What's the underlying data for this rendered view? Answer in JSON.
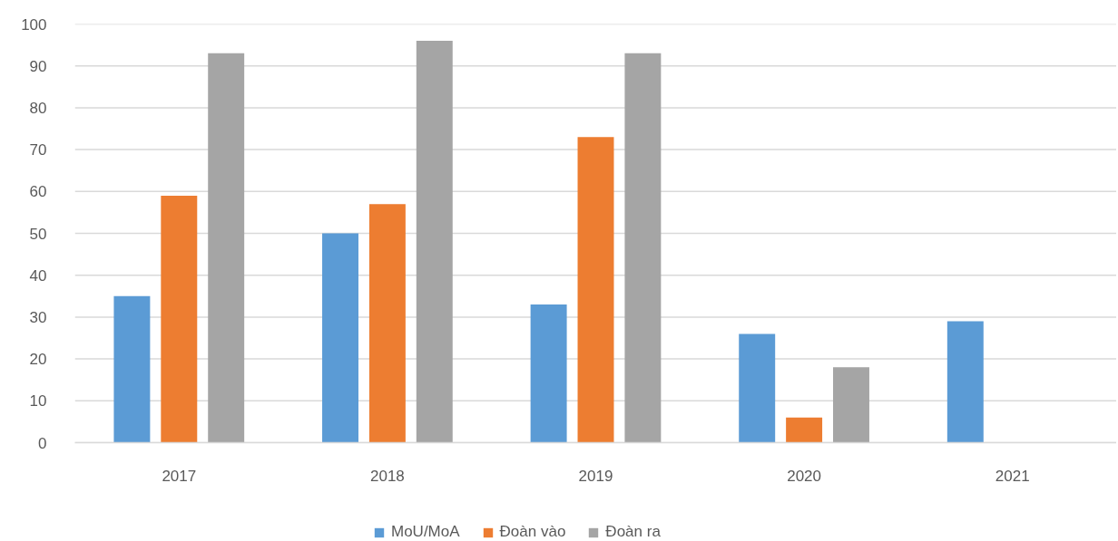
{
  "chart_data": {
    "type": "bar",
    "categories": [
      "2017",
      "2018",
      "2019",
      "2020",
      "2021"
    ],
    "series": [
      {
        "name": "MoU/MoA",
        "color": "#5b9bd5",
        "values": [
          35,
          50,
          33,
          26,
          29
        ]
      },
      {
        "name": "Đoàn vào",
        "color": "#ed7d31",
        "values": [
          59,
          57,
          73,
          6,
          null
        ]
      },
      {
        "name": "Đoàn ra",
        "color": "#a5a5a5",
        "values": [
          93,
          96,
          93,
          18,
          null
        ]
      }
    ],
    "ylim": [
      0,
      100
    ],
    "yticks": [
      0,
      10,
      20,
      30,
      40,
      50,
      60,
      70,
      80,
      90,
      100
    ],
    "grid": "y",
    "legend": "bottom"
  }
}
